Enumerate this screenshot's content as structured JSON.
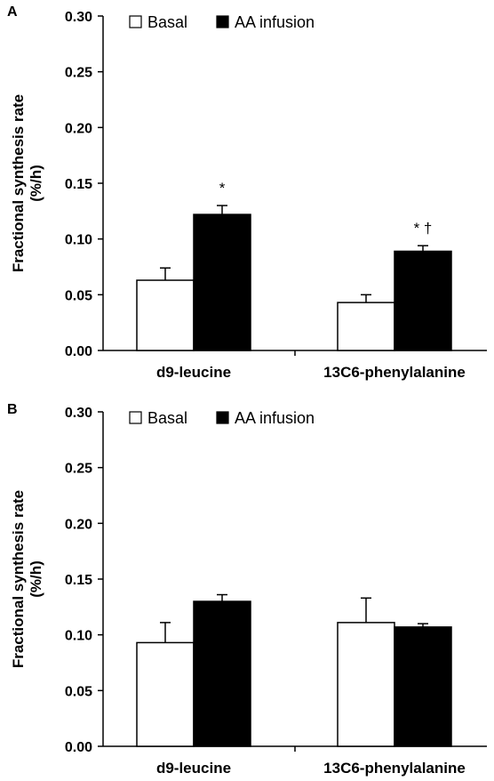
{
  "chart_data": [
    {
      "type": "bar",
      "panel_label": "A",
      "categories": [
        "d9-leucine",
        "13C6-phenylalanine"
      ],
      "ylabel": [
        "Fractional synthesis rate",
        "(%/h)"
      ],
      "ylim": [
        0,
        0.3
      ],
      "yticks": [
        "0.00",
        "0.05",
        "0.10",
        "0.15",
        "0.20",
        "0.25",
        "0.30"
      ],
      "legend": {
        "placement": "top-left"
      },
      "series": [
        {
          "name": "Basal",
          "color": "#ffffff",
          "values": [
            0.063,
            0.043
          ],
          "errors": [
            0.011,
            0.007
          ]
        },
        {
          "name": "AA infusion",
          "color": "#000000",
          "values": [
            0.122,
            0.089
          ],
          "errors": [
            0.008,
            0.005
          ]
        }
      ],
      "annotations": [
        {
          "category": 0,
          "series": 1,
          "text": "*"
        },
        {
          "category": 1,
          "series": 1,
          "text": "* †"
        }
      ]
    },
    {
      "type": "bar",
      "panel_label": "B",
      "categories": [
        "d9-leucine",
        "13C6-phenylalanine"
      ],
      "ylabel": [
        "Fractional synthesis rate",
        "(%/h)"
      ],
      "ylim": [
        0,
        0.3
      ],
      "yticks": [
        "0.00",
        "0.05",
        "0.10",
        "0.15",
        "0.20",
        "0.25",
        "0.30"
      ],
      "legend": {
        "placement": "top-left"
      },
      "series": [
        {
          "name": "Basal",
          "color": "#ffffff",
          "values": [
            0.093,
            0.111
          ],
          "errors": [
            0.018,
            0.022
          ]
        },
        {
          "name": "AA infusion",
          "color": "#000000",
          "values": [
            0.13,
            0.107
          ],
          "errors": [
            0.006,
            0.003
          ]
        }
      ],
      "annotations": []
    }
  ]
}
